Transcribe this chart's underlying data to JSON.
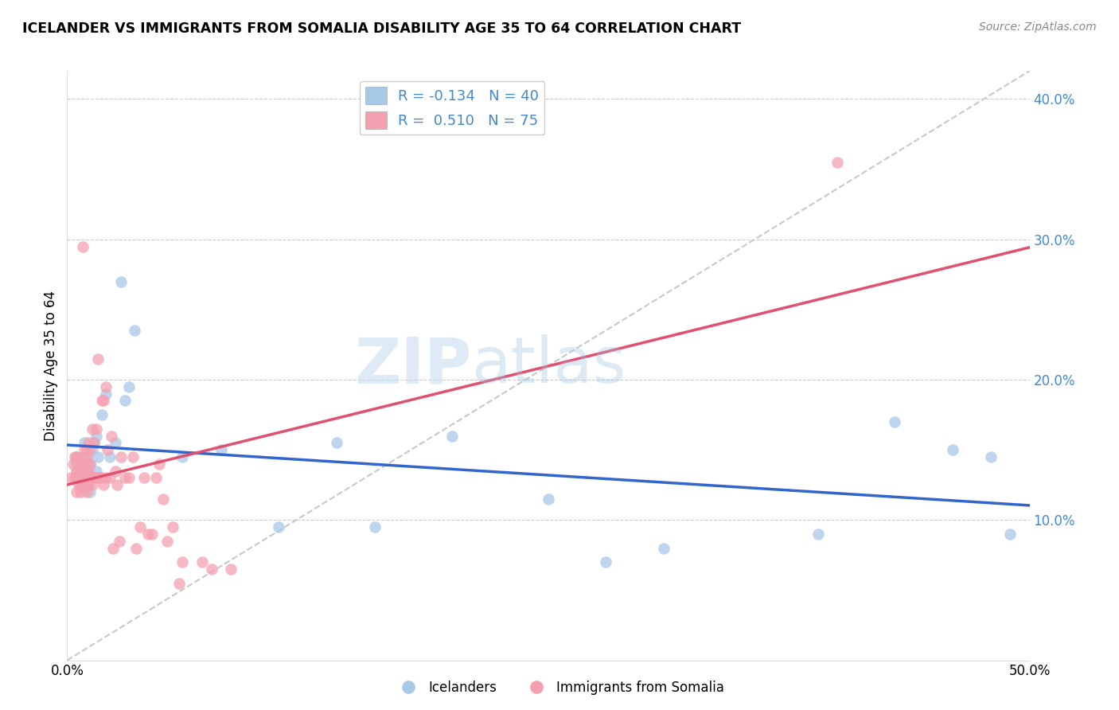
{
  "title": "ICELANDER VS IMMIGRANTS FROM SOMALIA DISABILITY AGE 35 TO 64 CORRELATION CHART",
  "source": "Source: ZipAtlas.com",
  "ylabel": "Disability Age 35 to 64",
  "xlim": [
    0.0,
    0.5
  ],
  "ylim": [
    0.0,
    0.42
  ],
  "yticks": [
    0.1,
    0.2,
    0.3,
    0.4
  ],
  "ytick_labels": [
    "10.0%",
    "20.0%",
    "30.0%",
    "40.0%"
  ],
  "background_color": "#ffffff",
  "watermark_zip": "ZIP",
  "watermark_atlas": "atlas",
  "legend_R_blue": "-0.134",
  "legend_N_blue": "40",
  "legend_R_pink": "0.510",
  "legend_N_pink": "75",
  "blue_color": "#a8c8e8",
  "pink_color": "#f4a0b0",
  "blue_line_color": "#3366cc",
  "pink_line_color": "#e05070",
  "diagonal_color": "#c8c8c8",
  "icelanders_x": [
    0.005,
    0.005,
    0.005,
    0.005,
    0.007,
    0.008,
    0.008,
    0.009,
    0.01,
    0.01,
    0.01,
    0.012,
    0.012,
    0.013,
    0.014,
    0.015,
    0.015,
    0.016,
    0.018,
    0.02,
    0.022,
    0.025,
    0.028,
    0.03,
    0.032,
    0.035,
    0.06,
    0.08,
    0.11,
    0.14,
    0.16,
    0.2,
    0.25,
    0.28,
    0.31,
    0.39,
    0.43,
    0.46,
    0.48,
    0.49
  ],
  "icelanders_y": [
    0.13,
    0.135,
    0.14,
    0.145,
    0.125,
    0.13,
    0.14,
    0.155,
    0.13,
    0.135,
    0.145,
    0.12,
    0.14,
    0.15,
    0.155,
    0.135,
    0.16,
    0.145,
    0.175,
    0.19,
    0.145,
    0.155,
    0.27,
    0.185,
    0.195,
    0.235,
    0.145,
    0.15,
    0.095,
    0.155,
    0.095,
    0.16,
    0.115,
    0.07,
    0.08,
    0.09,
    0.17,
    0.15,
    0.145,
    0.09
  ],
  "somalia_x": [
    0.002,
    0.003,
    0.004,
    0.004,
    0.005,
    0.005,
    0.005,
    0.005,
    0.006,
    0.006,
    0.007,
    0.007,
    0.007,
    0.007,
    0.008,
    0.008,
    0.008,
    0.008,
    0.009,
    0.009,
    0.009,
    0.01,
    0.01,
    0.01,
    0.01,
    0.01,
    0.01,
    0.011,
    0.011,
    0.011,
    0.012,
    0.012,
    0.012,
    0.013,
    0.013,
    0.014,
    0.014,
    0.015,
    0.015,
    0.016,
    0.016,
    0.017,
    0.018,
    0.018,
    0.019,
    0.019,
    0.02,
    0.02,
    0.021,
    0.022,
    0.023,
    0.024,
    0.025,
    0.026,
    0.027,
    0.028,
    0.03,
    0.032,
    0.034,
    0.036,
    0.038,
    0.04,
    0.042,
    0.044,
    0.046,
    0.048,
    0.05,
    0.052,
    0.055,
    0.058,
    0.06,
    0.07,
    0.075,
    0.085,
    0.4
  ],
  "somalia_y": [
    0.13,
    0.14,
    0.13,
    0.145,
    0.12,
    0.13,
    0.135,
    0.145,
    0.125,
    0.135,
    0.12,
    0.13,
    0.14,
    0.145,
    0.125,
    0.13,
    0.14,
    0.295,
    0.125,
    0.135,
    0.15,
    0.12,
    0.125,
    0.135,
    0.14,
    0.145,
    0.15,
    0.125,
    0.135,
    0.155,
    0.13,
    0.14,
    0.15,
    0.125,
    0.165,
    0.13,
    0.155,
    0.13,
    0.165,
    0.13,
    0.215,
    0.13,
    0.13,
    0.185,
    0.125,
    0.185,
    0.13,
    0.195,
    0.15,
    0.13,
    0.16,
    0.08,
    0.135,
    0.125,
    0.085,
    0.145,
    0.13,
    0.13,
    0.145,
    0.08,
    0.095,
    0.13,
    0.09,
    0.09,
    0.13,
    0.14,
    0.115,
    0.085,
    0.095,
    0.055,
    0.07,
    0.07,
    0.065,
    0.065,
    0.355
  ]
}
